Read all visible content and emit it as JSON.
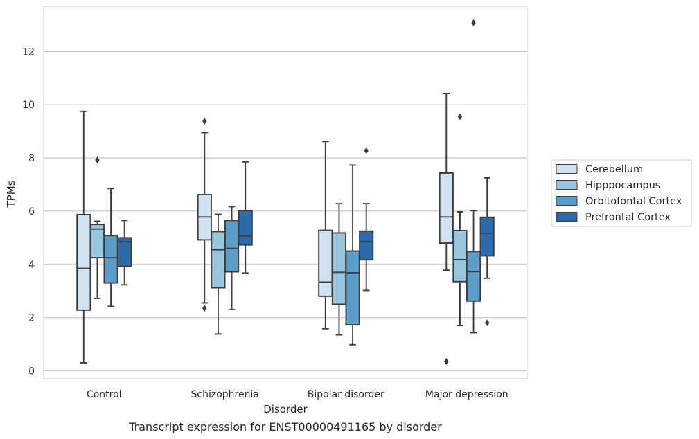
{
  "chart_data": {
    "type": "box",
    "caption": "Transcript expression for ENST00000491165 by disorder",
    "xlabel": "Disorder",
    "ylabel": "TPMs",
    "ylim": [
      -0.3,
      13.7
    ],
    "yticks": [
      0,
      2,
      4,
      6,
      8,
      10,
      12
    ],
    "ytick_labels": [
      "0",
      "2",
      "4",
      "6",
      "8",
      "10",
      "12"
    ],
    "grid": "horizontal",
    "legend_position": "right",
    "categories": [
      "Control",
      "Schizophrenia",
      "Bipolar disorder",
      "Major depression"
    ],
    "series": [
      {
        "name": "Cerebellum",
        "color": "#d1e2f2",
        "boxes": [
          {
            "whislo": 0.3,
            "q1": 2.28,
            "med": 3.85,
            "q3": 5.87,
            "whishi": 9.75,
            "fliers": []
          },
          {
            "whislo": 2.55,
            "q1": 4.92,
            "med": 5.78,
            "q3": 6.62,
            "whishi": 8.95,
            "fliers": [
              9.38,
              2.35
            ]
          },
          {
            "whislo": 1.58,
            "q1": 2.8,
            "med": 3.33,
            "q3": 5.28,
            "whishi": 8.62,
            "fliers": []
          },
          {
            "whislo": 3.78,
            "q1": 4.8,
            "med": 5.78,
            "q3": 7.43,
            "whishi": 10.42,
            "fliers": [
              0.35
            ]
          }
        ]
      },
      {
        "name": "Hipppocampus",
        "color": "#9ac7e0",
        "boxes": [
          {
            "whislo": 2.72,
            "q1": 4.25,
            "med": 5.33,
            "q3": 5.5,
            "whishi": 5.62,
            "fliers": [
              7.92
            ]
          },
          {
            "whislo": 1.38,
            "q1": 3.12,
            "med": 4.55,
            "q3": 5.23,
            "whishi": 5.88,
            "fliers": []
          },
          {
            "whislo": 1.35,
            "q1": 2.5,
            "med": 3.7,
            "q3": 5.18,
            "whishi": 6.28,
            "fliers": []
          },
          {
            "whislo": 1.7,
            "q1": 3.35,
            "med": 4.18,
            "q3": 5.27,
            "whishi": 5.97,
            "fliers": [
              9.55
            ]
          }
        ]
      },
      {
        "name": "Orbitofontal Cortex",
        "color": "#5a9ec9",
        "boxes": [
          {
            "whislo": 2.42,
            "q1": 3.3,
            "med": 4.25,
            "q3": 5.08,
            "whishi": 6.85,
            "fliers": []
          },
          {
            "whislo": 2.3,
            "q1": 3.72,
            "med": 4.6,
            "q3": 5.65,
            "whishi": 6.17,
            "fliers": []
          },
          {
            "whislo": 0.98,
            "q1": 1.73,
            "med": 3.68,
            "q3": 4.5,
            "whishi": 7.73,
            "fliers": []
          },
          {
            "whislo": 1.43,
            "q1": 2.62,
            "med": 3.73,
            "q3": 4.48,
            "whishi": 6.02,
            "fliers": [
              13.08
            ]
          }
        ]
      },
      {
        "name": "Prefrontal Cortex",
        "color": "#2a6bac",
        "boxes": [
          {
            "whislo": 3.23,
            "q1": 3.93,
            "med": 4.85,
            "q3": 5.0,
            "whishi": 5.65,
            "fliers": []
          },
          {
            "whislo": 3.67,
            "q1": 4.73,
            "med": 5.07,
            "q3": 6.02,
            "whishi": 7.85,
            "fliers": []
          },
          {
            "whislo": 3.02,
            "q1": 4.17,
            "med": 4.85,
            "q3": 5.25,
            "whishi": 6.28,
            "fliers": [
              8.27
            ]
          },
          {
            "whislo": 3.48,
            "q1": 4.32,
            "med": 5.17,
            "q3": 5.77,
            "whishi": 7.25,
            "fliers": [
              1.8
            ]
          }
        ]
      }
    ]
  }
}
